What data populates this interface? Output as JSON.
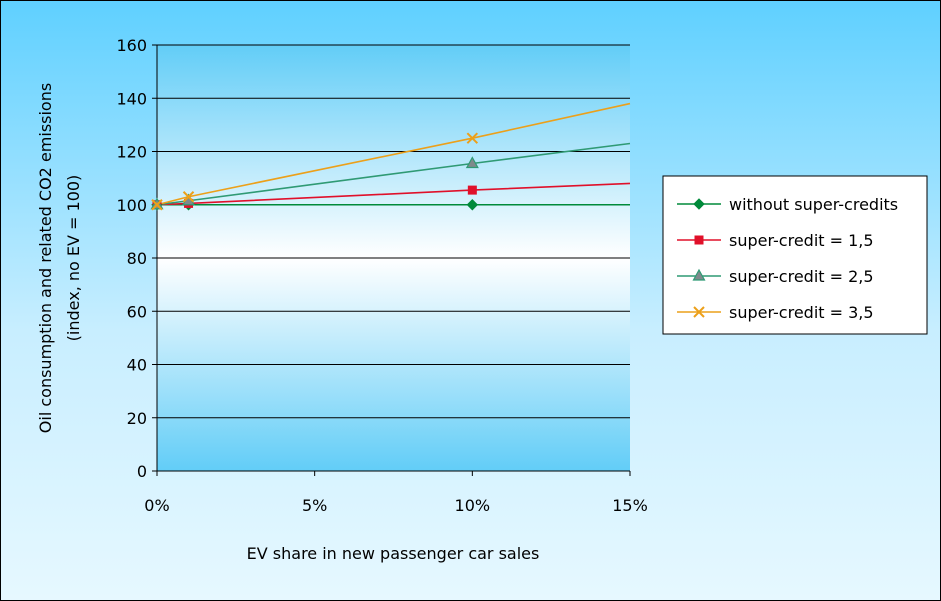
{
  "chart_data": {
    "type": "line",
    "xlabel": "EV share in new passenger car sales",
    "ylabel_lines": [
      "Oil consumption and related CO2 emissions",
      "(index, no EV = 100)"
    ],
    "xlim": [
      0,
      15
    ],
    "ylim": [
      0,
      160
    ],
    "xticks": [
      0,
      5,
      10,
      15
    ],
    "xtick_labels": [
      "0%",
      "5%",
      "10%",
      "15%"
    ],
    "yticks": [
      0,
      20,
      40,
      60,
      80,
      100,
      120,
      140,
      160
    ],
    "ytick_labels": [
      "0",
      "20",
      "40",
      "60",
      "80",
      "100",
      "120",
      "140",
      "160"
    ],
    "grid": "horizontal",
    "legend_position": "right",
    "series": [
      {
        "name": "without super-credits",
        "color": "#008a3a",
        "marker": "diamond",
        "x": [
          0,
          1,
          10,
          15
        ],
        "y": [
          100,
          100,
          100,
          100
        ],
        "marker_x": [
          0,
          1,
          10
        ]
      },
      {
        "name": "super-credit = 1,5",
        "color": "#e0102a",
        "marker": "square",
        "x": [
          0,
          1,
          10,
          15
        ],
        "y": [
          100,
          100.5,
          105.5,
          108
        ],
        "marker_x": [
          0,
          1,
          10
        ]
      },
      {
        "name": "super-credit = 2,5",
        "color": "#2f9a74",
        "marker": "triangle",
        "x": [
          0,
          1,
          10,
          15
        ],
        "y": [
          100,
          101.5,
          115.5,
          123
        ],
        "marker_x": [
          0,
          1,
          10
        ]
      },
      {
        "name": "super-credit = 3,5",
        "color": "#eca01a",
        "marker": "cross",
        "x": [
          0,
          1,
          10,
          15
        ],
        "y": [
          100,
          103,
          125,
          138
        ],
        "marker_x": [
          0,
          1,
          10
        ]
      }
    ]
  }
}
